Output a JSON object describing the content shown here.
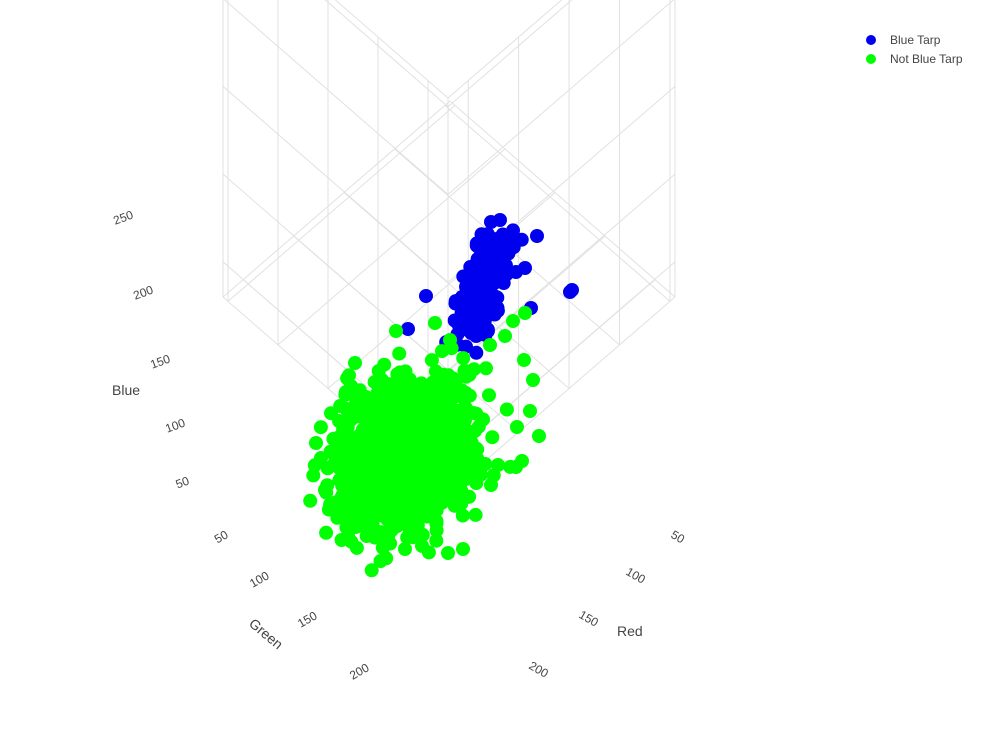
{
  "chart_data": {
    "type": "scatter",
    "variant": "3d",
    "title": "",
    "axes": {
      "x": {
        "label": "Red",
        "ticks": [
          50,
          100,
          150,
          200
        ],
        "range": [
          30,
          255
        ]
      },
      "y": {
        "label": "Green",
        "ticks": [
          50,
          100,
          150,
          200
        ],
        "range": [
          30,
          255
        ]
      },
      "z": {
        "label": "Blue",
        "ticks": [
          50,
          100,
          150,
          200,
          250
        ],
        "range": [
          30,
          255
        ]
      }
    },
    "grid": true,
    "legend_position": "top-right",
    "series": [
      {
        "name": "Blue Tarp",
        "color": "#0000ee",
        "cluster": {
          "red_range": [
            80,
            200
          ],
          "green_range": [
            110,
            230
          ],
          "blue_range": [
            150,
            255
          ]
        }
      },
      {
        "name": "Not Blue Tarp",
        "color": "#00ff00",
        "cluster": {
          "red_range": [
            50,
            255
          ],
          "green_range": [
            40,
            255
          ],
          "blue_range": [
            30,
            160
          ]
        }
      }
    ]
  }
}
